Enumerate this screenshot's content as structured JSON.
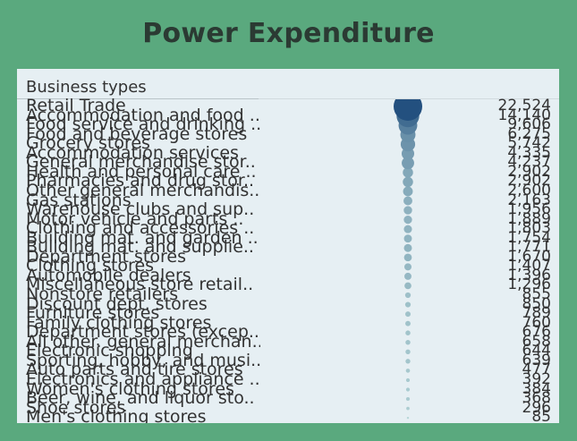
{
  "title": "Power Expenditure",
  "header": "Business types",
  "colors": {
    "background": "#5aa97e",
    "panel": "#e6eff3",
    "dot_dark": "#23507f",
    "dot_light": "#c3e2df"
  },
  "chart_data": {
    "type": "scatter",
    "title": "Power Expenditure",
    "xlabel": "Business types",
    "categories": [
      "Retail Trade",
      "Accommodation and food ..",
      "Food service and drinking ..",
      "Food and beverage stores",
      "Grocery stores",
      "Accommodation services",
      "General merchandise stor..",
      "Health and personal care ..",
      "Pharmacies and drug stor..",
      "Other general merchandis..",
      "Gas stations",
      "Warehouse clubs and sup..",
      "Motor vehicle and parts ..",
      "Clothing and accessories ..",
      "Building mat. and garden ..",
      "Building mat. and supplie..",
      "Department stores",
      "Clothing stores",
      "Automobile dealers",
      "Miscellaneous store retail..",
      "Nonstore retailers",
      "Discount dept. stores",
      "Furniture stores",
      "Family clothing stores",
      "Department stores (excep..",
      "All other. general merchan..",
      "Electronic shopping",
      "Sporting, hobby, and musi..",
      "Auto parts and tire stores",
      "Electronics and appliance ..",
      "Women's clothing stores",
      "Beer, wine, and liquor sto..",
      "Shoe stores",
      "Men's clothing stores"
    ],
    "value_labels": [
      "22,524",
      "14,140",
      "9,606",
      "6,275",
      "5,742",
      "4,335",
      "4,237",
      "2,902",
      "2,902",
      "2,600",
      "2,163",
      "1,956",
      "1,889",
      "1,803",
      "1,754",
      "1,771",
      "1,670",
      "1,407",
      "1,396",
      "1,296",
      "855",
      "850",
      "789",
      "760",
      "676",
      "658",
      "644",
      "639",
      "477",
      "392",
      "384",
      "368",
      "296",
      "85"
    ],
    "values": [
      22524,
      14140,
      9606,
      6275,
      5742,
      4335,
      4237,
      2902,
      2902,
      2600,
      2163,
      1956,
      1889,
      1803,
      1754,
      1771,
      1670,
      1407,
      1396,
      1296,
      855,
      850,
      789,
      760,
      676,
      658,
      644,
      639,
      477,
      392,
      384,
      368,
      296,
      85
    ]
  }
}
